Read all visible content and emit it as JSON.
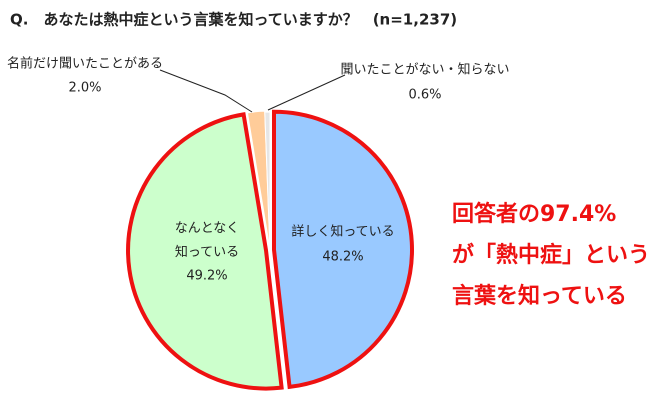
{
  "chart_data": {
    "type": "pie",
    "title": "Q.　あなたは熱中症という言葉を知っていますか？　(n=1,237)",
    "categories": [
      "詳しく知っている",
      "なんとなく\n知っている",
      "名前だけ聞いたことがある",
      "聞いたことがない・知らない"
    ],
    "values": [
      48.2,
      49.2,
      2.0,
      0.6
    ],
    "value_labels": [
      "48.2%",
      "49.2%",
      "2.0%",
      "0.6%"
    ],
    "colors": [
      "#99c9ff",
      "#ccffcc",
      "#ffcc99",
      "#e6e6e6"
    ],
    "annotation": "回答者の97.4%\nが「熱中症」という\n言葉を知っている"
  }
}
